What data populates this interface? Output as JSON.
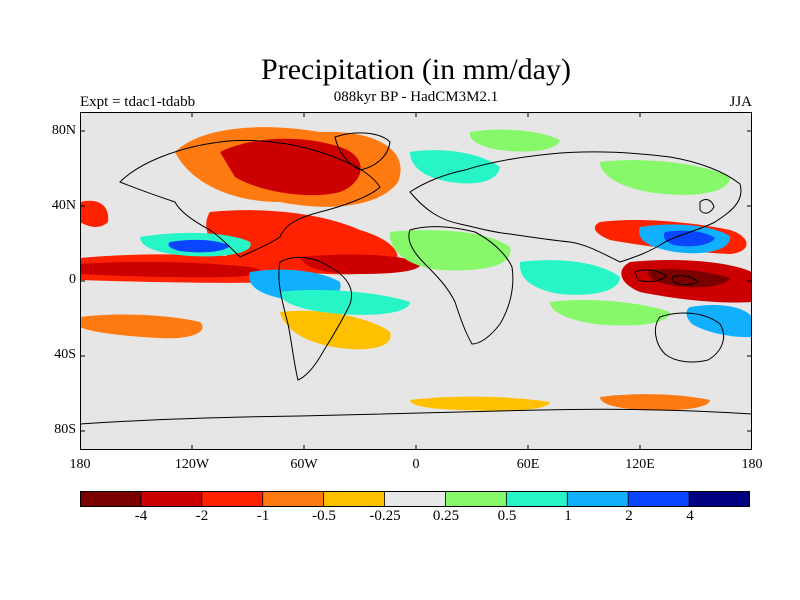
{
  "header": {
    "title": "Precipitation (in mm/day)",
    "subtitle": "088kyr BP - HadCM3M2.1",
    "experiment": "Expt = tdac1-tdabb",
    "season": "JJA"
  },
  "axes": {
    "lat_labels": [
      "80N",
      "40N",
      "0",
      "40S",
      "80S"
    ],
    "lon_labels": [
      "180",
      "120W",
      "60W",
      "0",
      "60E",
      "120E",
      "180"
    ]
  },
  "colorbar": {
    "labels": [
      "-4",
      "-2",
      "-1",
      "-0.5",
      "-0.25",
      "0.25",
      "0.5",
      "1",
      "2",
      "4"
    ],
    "colors": [
      "#7a0000",
      "#cc0000",
      "#ff2200",
      "#ff7a10",
      "#ffc000",
      "#e8e8e8",
      "#86f86a",
      "#27f5c8",
      "#10b0ff",
      "#0a45ff",
      "#000080"
    ]
  },
  "map": {
    "background": "#e6e6e6"
  }
}
